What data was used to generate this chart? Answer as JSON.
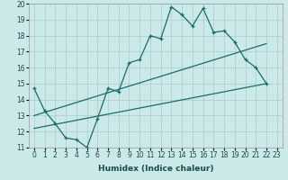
{
  "xlabel": "Humidex (Indice chaleur)",
  "xlim": [
    -0.5,
    23.5
  ],
  "ylim": [
    11,
    20
  ],
  "xticks": [
    0,
    1,
    2,
    3,
    4,
    5,
    6,
    7,
    8,
    9,
    10,
    11,
    12,
    13,
    14,
    15,
    16,
    17,
    18,
    19,
    20,
    21,
    22,
    23
  ],
  "yticks": [
    11,
    12,
    13,
    14,
    15,
    16,
    17,
    18,
    19,
    20
  ],
  "background_color": "#cce9e9",
  "grid_color": "#aacccc",
  "line_color": "#1a6b6b",
  "line1_x": [
    0,
    1,
    2,
    3,
    4,
    5,
    6,
    7,
    8,
    9,
    10,
    11,
    12,
    13,
    14,
    15,
    16,
    17,
    18,
    19,
    20,
    21,
    22
  ],
  "line1_y": [
    14.7,
    13.3,
    12.5,
    11.6,
    11.5,
    11.0,
    12.8,
    14.7,
    14.5,
    16.3,
    16.5,
    18.0,
    17.8,
    19.8,
    19.3,
    18.6,
    19.7,
    18.2,
    18.3,
    17.6,
    16.5,
    16.0,
    15.0
  ],
  "line2_x": [
    0,
    22
  ],
  "line2_y": [
    13.0,
    17.5
  ],
  "line3_x": [
    0,
    22
  ],
  "line3_y": [
    12.2,
    15.0
  ],
  "tick_fontsize": 5.5,
  "xlabel_fontsize": 6.5
}
